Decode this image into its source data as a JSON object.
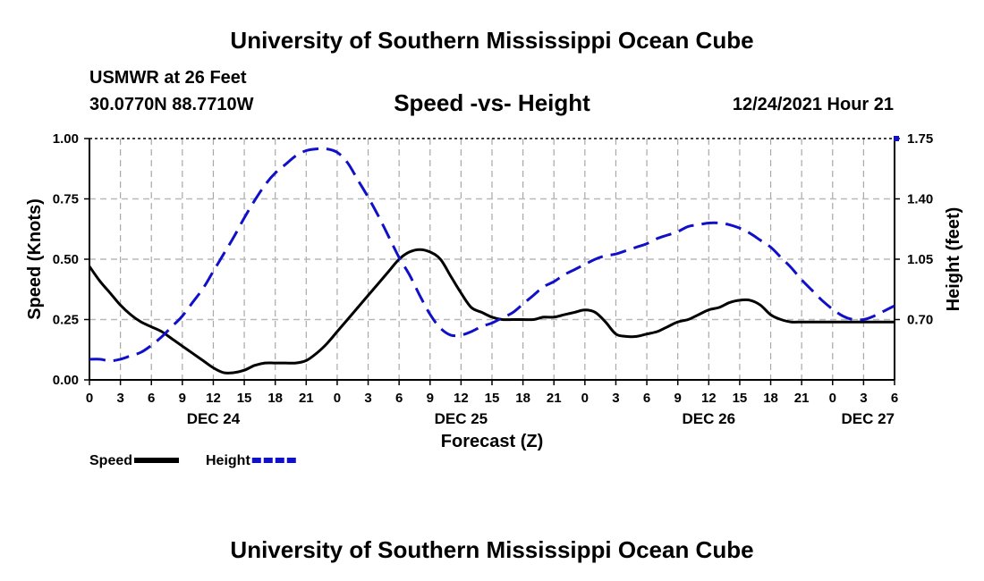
{
  "page": {
    "title": "University of Southern Mississippi Ocean Cube",
    "footer_title": "University of Southern Mississippi Ocean Cube",
    "station": "USMWR at 26 Feet",
    "coords": "30.0770N  88.7710W",
    "datetime": "12/24/2021 Hour 21"
  },
  "chart_data": {
    "type": "line",
    "title": "Speed -vs- Height",
    "xlabel": "Forecast (Z)",
    "ylabel": "Speed (Knots)",
    "y2label": "Height (feet)",
    "x_range": [
      0,
      78
    ],
    "ylim": [
      0,
      1.0
    ],
    "y2lim": [
      0.35,
      1.75
    ],
    "y_ticks": [
      "1.00",
      "0.75",
      "0.50",
      "0.25",
      "0.00"
    ],
    "y2_ticks": [
      "1.75",
      "1.40",
      "1.05",
      "0.70"
    ],
    "x_tick_labels": [
      "0",
      "3",
      "6",
      "9",
      "12",
      "15",
      "18",
      "21",
      "0",
      "3",
      "6",
      "9",
      "12",
      "15",
      "18",
      "21",
      "0",
      "3",
      "6",
      "9",
      "12",
      "15",
      "18",
      "21",
      "0",
      "3",
      "6"
    ],
    "day_labels": [
      {
        "label": "DEC 24",
        "hour": 12
      },
      {
        "label": "DEC 25",
        "hour": 36
      },
      {
        "label": "DEC 26",
        "hour": 60
      },
      {
        "label": "DEC 27",
        "hour": 78
      }
    ],
    "grid": true,
    "colors": {
      "speed": "#000000",
      "height": "#1010c8"
    },
    "series": [
      {
        "name": "Speed",
        "axis": "left",
        "style": "solid",
        "x": [
          0,
          1,
          2,
          3,
          4,
          5,
          6,
          7,
          8,
          9,
          10,
          11,
          12,
          13,
          14,
          15,
          16,
          17,
          18,
          19,
          20,
          21,
          22,
          23,
          24,
          25,
          26,
          27,
          28,
          29,
          30,
          31,
          32,
          33,
          34,
          35,
          36,
          37,
          38,
          39,
          40,
          41,
          42,
          43,
          44,
          45,
          46,
          47,
          48,
          49,
          50,
          51,
          52,
          53,
          54,
          55,
          56,
          57,
          58,
          59,
          60,
          61,
          62,
          63,
          64,
          65,
          66,
          67,
          68,
          69,
          70,
          71,
          72,
          73,
          74,
          75,
          76,
          77,
          78
        ],
        "values": [
          0.47,
          0.41,
          0.36,
          0.31,
          0.27,
          0.24,
          0.22,
          0.2,
          0.17,
          0.14,
          0.11,
          0.08,
          0.05,
          0.03,
          0.03,
          0.04,
          0.06,
          0.07,
          0.07,
          0.07,
          0.07,
          0.08,
          0.11,
          0.15,
          0.2,
          0.25,
          0.3,
          0.35,
          0.4,
          0.45,
          0.5,
          0.53,
          0.54,
          0.53,
          0.5,
          0.43,
          0.36,
          0.3,
          0.28,
          0.26,
          0.25,
          0.25,
          0.25,
          0.25,
          0.26,
          0.26,
          0.27,
          0.28,
          0.29,
          0.28,
          0.24,
          0.19,
          0.18,
          0.18,
          0.19,
          0.2,
          0.22,
          0.24,
          0.25,
          0.27,
          0.29,
          0.3,
          0.32,
          0.33,
          0.33,
          0.31,
          0.27,
          0.25,
          0.24,
          0.24,
          0.24,
          0.24,
          0.24,
          0.24,
          0.24,
          0.24,
          0.24,
          0.24,
          0.24
        ]
      },
      {
        "name": "Height",
        "axis": "right",
        "style": "dashed",
        "x": [
          0,
          1,
          2,
          3,
          4,
          5,
          6,
          7,
          8,
          9,
          10,
          11,
          12,
          13,
          14,
          15,
          16,
          17,
          18,
          19,
          20,
          21,
          22,
          23,
          24,
          25,
          26,
          27,
          28,
          29,
          30,
          31,
          32,
          33,
          34,
          35,
          36,
          37,
          38,
          39,
          40,
          41,
          42,
          43,
          44,
          45,
          46,
          47,
          48,
          49,
          50,
          51,
          52,
          53,
          54,
          55,
          56,
          57,
          58,
          59,
          60,
          61,
          62,
          63,
          64,
          65,
          66,
          67,
          68,
          69,
          70,
          71,
          72,
          73,
          74,
          75,
          76,
          77,
          78
        ],
        "values": [
          0.47,
          0.47,
          0.46,
          0.47,
          0.49,
          0.51,
          0.55,
          0.6,
          0.66,
          0.72,
          0.8,
          0.88,
          0.98,
          1.08,
          1.18,
          1.29,
          1.39,
          1.48,
          1.55,
          1.6,
          1.65,
          1.68,
          1.69,
          1.69,
          1.67,
          1.61,
          1.51,
          1.41,
          1.3,
          1.18,
          1.06,
          0.96,
          0.84,
          0.73,
          0.65,
          0.61,
          0.61,
          0.63,
          0.66,
          0.68,
          0.71,
          0.74,
          0.79,
          0.84,
          0.89,
          0.92,
          0.96,
          0.99,
          1.02,
          1.05,
          1.07,
          1.08,
          1.1,
          1.12,
          1.14,
          1.17,
          1.19,
          1.21,
          1.24,
          1.25,
          1.26,
          1.26,
          1.25,
          1.23,
          1.2,
          1.16,
          1.12,
          1.06,
          1.0,
          0.93,
          0.87,
          0.81,
          0.76,
          0.72,
          0.7,
          0.7,
          0.72,
          0.75,
          0.78
        ]
      }
    ],
    "legend": [
      {
        "label": "Speed",
        "series": "Speed"
      },
      {
        "label": "Height",
        "series": "Height"
      }
    ],
    "legend_position": "bottom-left"
  }
}
